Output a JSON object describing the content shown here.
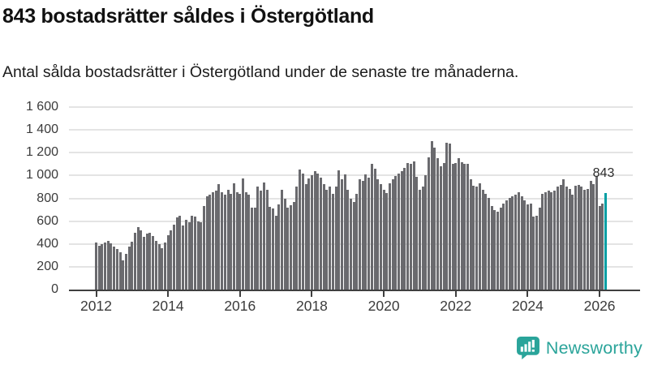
{
  "header": {
    "title": "843 bostadsrätter såldes i Östergötland",
    "subtitle": "Antal sålda bostadsrätter i Östergötland under de senaste tre månaderna."
  },
  "chart_data": {
    "type": "bar",
    "title": "843 bostadsrätter såldes i Östergötland",
    "xlabel": "",
    "ylabel": "",
    "x_start": "2012-01",
    "x_interval": "month",
    "ylim": [
      0,
      1600
    ],
    "grid": true,
    "legend": false,
    "values": [
      410,
      385,
      400,
      415,
      430,
      405,
      375,
      355,
      330,
      255,
      310,
      380,
      420,
      495,
      545,
      520,
      460,
      490,
      500,
      470,
      430,
      400,
      365,
      415,
      480,
      520,
      570,
      630,
      650,
      560,
      615,
      590,
      650,
      640,
      595,
      590,
      735,
      815,
      835,
      850,
      865,
      925,
      850,
      835,
      875,
      840,
      930,
      855,
      840,
      975,
      850,
      835,
      720,
      715,
      905,
      865,
      940,
      875,
      725,
      710,
      650,
      745,
      875,
      795,
      720,
      740,
      770,
      900,
      1050,
      1020,
      925,
      975,
      1005,
      1035,
      1020,
      980,
      925,
      875,
      905,
      840,
      905,
      1045,
      970,
      1010,
      875,
      795,
      770,
      840,
      970,
      950,
      1010,
      980,
      1100,
      1060,
      970,
      925,
      875,
      845,
      935,
      970,
      995,
      1020,
      1035,
      1065,
      1110,
      1100,
      1125,
      985,
      875,
      905,
      1005,
      1160,
      1300,
      1245,
      1150,
      1080,
      1110,
      1290,
      1280,
      1100,
      1110,
      1150,
      1115,
      1100,
      1105,
      970,
      910,
      900,
      935,
      875,
      840,
      805,
      735,
      700,
      685,
      720,
      755,
      780,
      805,
      815,
      830,
      850,
      815,
      780,
      745,
      755,
      640,
      650,
      720,
      840,
      850,
      865,
      850,
      865,
      900,
      920,
      970,
      900,
      885,
      830,
      910,
      915,
      905,
      875,
      885,
      950,
      925,
      995,
      735,
      755,
      843
    ],
    "highlight_index": 170,
    "highlight_value": 843,
    "annotation": {
      "label": "843"
    },
    "y_ticks": [
      {
        "value": 0,
        "label": "0"
      },
      {
        "value": 200,
        "label": "200"
      },
      {
        "value": 400,
        "label": "400"
      },
      {
        "value": 600,
        "label": "600"
      },
      {
        "value": 800,
        "label": "800"
      },
      {
        "value": 1000,
        "label": "1 000"
      },
      {
        "value": 1200,
        "label": "1 200"
      },
      {
        "value": 1400,
        "label": "1 400"
      },
      {
        "value": 1600,
        "label": "1 600"
      }
    ],
    "x_ticks": [
      {
        "year": 2012,
        "label": "2012"
      },
      {
        "year": 2014,
        "label": "2014"
      },
      {
        "year": 2016,
        "label": "2016"
      },
      {
        "year": 2018,
        "label": "2018"
      },
      {
        "year": 2020,
        "label": "2020"
      },
      {
        "year": 2022,
        "label": "2022"
      },
      {
        "year": 2024,
        "label": "2024"
      },
      {
        "year": 2026,
        "label": "2026"
      }
    ],
    "colors": {
      "bar": "#6a6a6e",
      "highlight": "#009ea3",
      "grid": "#e4e4e4",
      "axis": "#3f3f3f",
      "tick_label": "#3b3b3b"
    }
  },
  "footer": {
    "brand": "Newsworthy",
    "brand_color": "#2aa49a",
    "logo_icon": "bar-chart-speech-bubble-icon"
  }
}
